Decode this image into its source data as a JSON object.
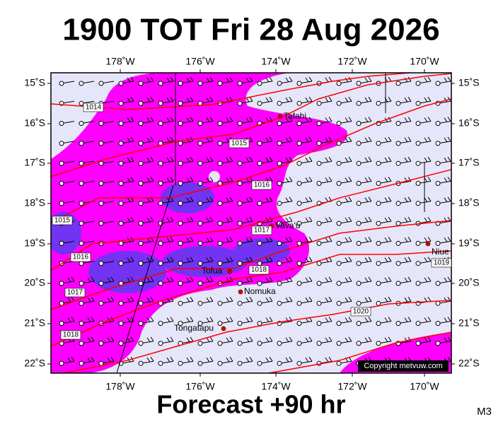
{
  "header": {
    "title": "1900 TOT Fri 28 Aug 2026"
  },
  "axes": {
    "top": [
      "178˚W",
      "176˚W",
      "174˚W",
      "172˚W",
      "170˚W"
    ],
    "bottom": [
      "178˚W",
      "176˚W",
      "174˚W",
      "172˚W",
      "170˚W"
    ],
    "left": [
      "15˚S",
      "16˚S",
      "17˚S",
      "18˚S",
      "19˚S",
      "20˚S",
      "21˚S",
      "22˚S"
    ],
    "right": [
      "15˚S",
      "16˚S",
      "17˚S",
      "18˚S",
      "19˚S",
      "20˚S",
      "21˚S",
      "22˚S"
    ]
  },
  "places": [
    "Tafahi",
    "Vava'u",
    "Niue",
    "Tofua",
    "Nomuka",
    "Tongatapu"
  ],
  "isobar_labels": [
    1014,
    1015,
    1016,
    1017,
    1018,
    1019,
    1020,
    1015,
    1016,
    1017,
    1018
  ],
  "copyright": "Copyright metvuw.com",
  "footer": {
    "forecast": "Forecast +90 hr",
    "code": "M3"
  }
}
